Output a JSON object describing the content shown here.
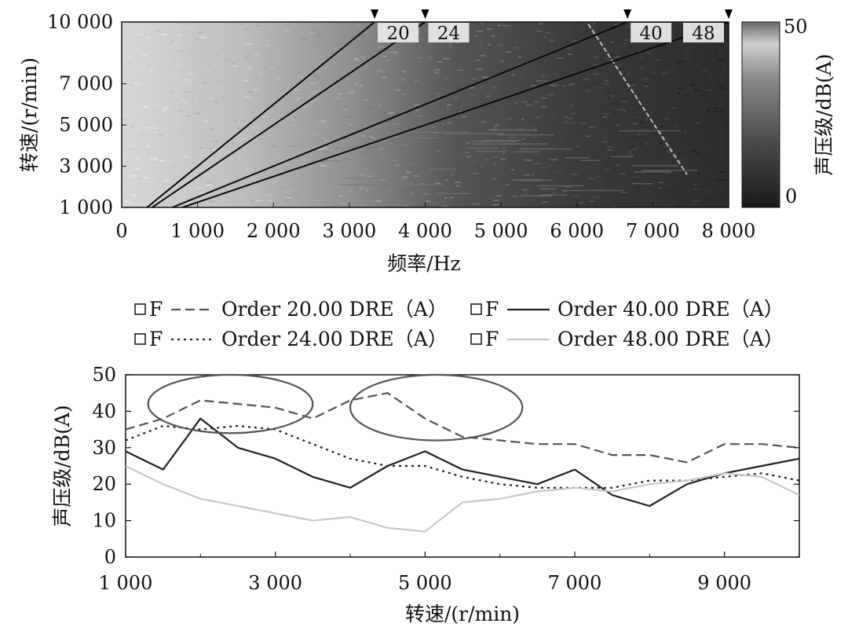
{
  "chart_data": [
    {
      "type": "heatmap",
      "xlabel": "频率/Hz",
      "ylabel": "转速/(r/min)",
      "x_ticks": [
        "0",
        "1 000",
        "2 000",
        "3 000",
        "4 000",
        "5 000",
        "6 000",
        "7 000",
        "8 000"
      ],
      "y_ticks": [
        "1 000",
        "3 000",
        "5 000",
        "7 000",
        "10 000"
      ],
      "x_range": [
        0,
        8000
      ],
      "y_range": [
        1000,
        10000
      ],
      "colorbar": {
        "label": "声压级/dB(A)",
        "min": 0,
        "max": 50,
        "min_label": "0",
        "max_label": "50"
      },
      "order_lines": [
        {
          "label": "20",
          "order": 20
        },
        {
          "label": "24",
          "order": 24
        },
        {
          "label": "40",
          "order": 40
        },
        {
          "label": "48",
          "order": 48
        }
      ]
    },
    {
      "type": "line",
      "xlabel": "转速/(r/min)",
      "ylabel": "声压级/dB(A)",
      "xlim": [
        1000,
        10000
      ],
      "ylim": [
        0,
        50
      ],
      "x_ticks": [
        "1 000",
        "3 000",
        "5 000",
        "7 000",
        "9 000"
      ],
      "y_ticks": [
        "0",
        "10",
        "20",
        "30",
        "40",
        "50"
      ],
      "legend": [
        {
          "prefix": "F",
          "name": "Order 20.00 DRE（A）"
        },
        {
          "prefix": "F",
          "name": "Order 40.00 DRE（A）"
        },
        {
          "prefix": "F",
          "name": "Order 24.00 DRE（A）"
        },
        {
          "prefix": "F",
          "name": "Order 48.00 DRE（A）"
        }
      ],
      "x": [
        1000,
        1500,
        2000,
        2500,
        3000,
        3500,
        4000,
        4500,
        5000,
        5500,
        6000,
        6500,
        7000,
        7500,
        8000,
        8500,
        9000,
        9500,
        10000
      ],
      "series": [
        {
          "name": "Order 20.00 DRE（A）",
          "style": "dashed",
          "color": "#555555",
          "values": [
            35,
            38,
            43,
            42,
            41,
            38,
            43,
            45,
            38,
            33,
            32,
            31,
            31,
            28,
            28,
            26,
            31,
            31,
            30
          ]
        },
        {
          "name": "Order 24.00 DRE（A）",
          "style": "dotted",
          "color": "#222222",
          "values": [
            32,
            36,
            35,
            36,
            35,
            31,
            27,
            25,
            25,
            22,
            20,
            19,
            19,
            19,
            21,
            21,
            22,
            23,
            21
          ]
        },
        {
          "name": "Order 40.00 DRE（A）",
          "style": "solid",
          "color": "#222222",
          "values": [
            29,
            24,
            38,
            30,
            27,
            22,
            19,
            25,
            29,
            24,
            22,
            20,
            24,
            17,
            14,
            20,
            23,
            25,
            27
          ]
        },
        {
          "name": "Order 48.00 DRE（A）",
          "style": "solid",
          "color": "#c8c8c8",
          "values": [
            25,
            20,
            16,
            14,
            12,
            10,
            11,
            8,
            7,
            15,
            16,
            18,
            19,
            18,
            20,
            21,
            23,
            22,
            17
          ]
        }
      ],
      "annotations": [
        {
          "shape": "ellipse",
          "x_range": [
            1300,
            3500
          ],
          "y_range": [
            34,
            50
          ]
        },
        {
          "shape": "ellipse",
          "x_range": [
            4000,
            6300
          ],
          "y_range": [
            32,
            50
          ]
        }
      ]
    }
  ]
}
